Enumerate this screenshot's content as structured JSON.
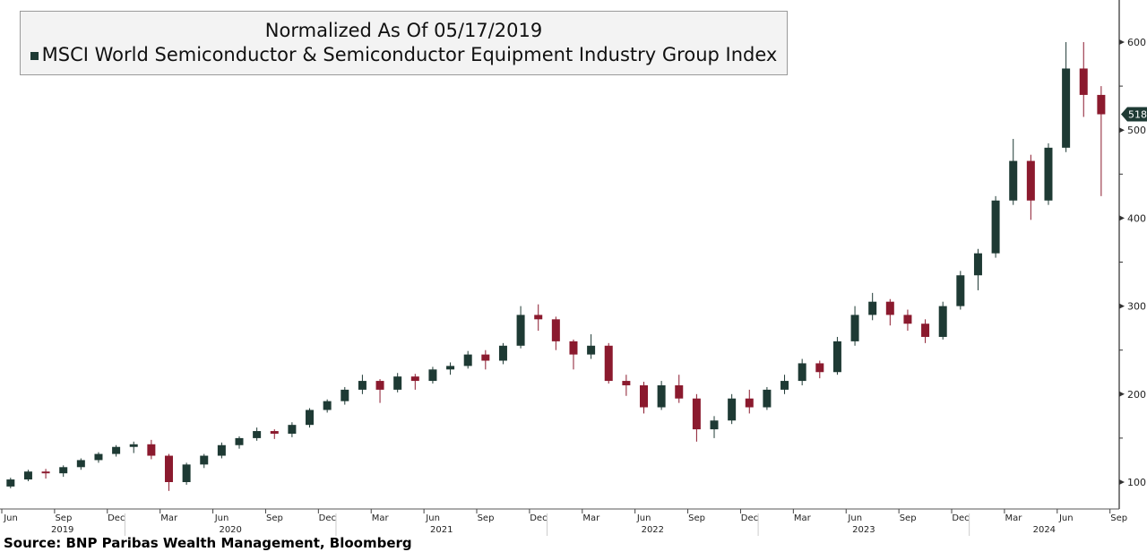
{
  "chart_data": {
    "type": "candlestick",
    "title": "Normalized As Of 05/17/2019",
    "series_name": "MSCI World Semiconductor & Semiconductor Equipment Industry Group Index",
    "last_value_label": "518.1",
    "ylim": [
      90,
      640
    ],
    "yticks": [
      100,
      200,
      300,
      400,
      500,
      600
    ],
    "xtick_labels": [
      "Jun",
      "Sep",
      "Dec",
      "Mar",
      "Jun",
      "Sep",
      "Dec",
      "Mar",
      "Jun",
      "Sep",
      "Dec",
      "Mar",
      "Jun",
      "Sep",
      "Dec",
      "Mar",
      "Jun",
      "Sep",
      "Dec",
      "Mar",
      "Jun",
      "Sep"
    ],
    "year_labels": [
      "2019",
      "2020",
      "2021",
      "2022",
      "2023",
      "2024"
    ],
    "grid": false,
    "colors": {
      "up": "#1e3a34",
      "down": "#8b1a2e",
      "axis": "#555555"
    },
    "periods": [
      "2019-05",
      "2019-06",
      "2019-07",
      "2019-08",
      "2019-09",
      "2019-10",
      "2019-11",
      "2019-12",
      "2020-01",
      "2020-02",
      "2020-03",
      "2020-04",
      "2020-05",
      "2020-06",
      "2020-07",
      "2020-08",
      "2020-09",
      "2020-10",
      "2020-11",
      "2020-12",
      "2021-01",
      "2021-02",
      "2021-03",
      "2021-04",
      "2021-05",
      "2021-06",
      "2021-07",
      "2021-08",
      "2021-09",
      "2021-10",
      "2021-11",
      "2021-12",
      "2022-01",
      "2022-02",
      "2022-03",
      "2022-04",
      "2022-05",
      "2022-06",
      "2022-07",
      "2022-08",
      "2022-09",
      "2022-10",
      "2022-11",
      "2022-12",
      "2023-01",
      "2023-02",
      "2023-03",
      "2023-04",
      "2023-05",
      "2023-06",
      "2023-07",
      "2023-08",
      "2023-09",
      "2023-10",
      "2023-11",
      "2023-12",
      "2024-01",
      "2024-02",
      "2024-03",
      "2024-04",
      "2024-05",
      "2024-06",
      "2024-07",
      "2024-08"
    ],
    "ohlc": [
      [
        100,
        101,
        92,
        95
      ],
      [
        95,
        105,
        93,
        103
      ],
      [
        103,
        114,
        101,
        112
      ],
      [
        112,
        115,
        104,
        110
      ],
      [
        110,
        119,
        106,
        117
      ],
      [
        117,
        127,
        114,
        125
      ],
      [
        125,
        134,
        122,
        132
      ],
      [
        132,
        142,
        129,
        140
      ],
      [
        140,
        146,
        133,
        143
      ],
      [
        143,
        148,
        126,
        130
      ],
      [
        130,
        132,
        90,
        100
      ],
      [
        100,
        122,
        97,
        120
      ],
      [
        120,
        132,
        116,
        130
      ],
      [
        130,
        145,
        127,
        142
      ],
      [
        142,
        152,
        138,
        150
      ],
      [
        150,
        162,
        147,
        158
      ],
      [
        158,
        160,
        149,
        155
      ],
      [
        155,
        168,
        151,
        165
      ],
      [
        165,
        184,
        162,
        182
      ],
      [
        182,
        194,
        179,
        192
      ],
      [
        192,
        208,
        188,
        205
      ],
      [
        205,
        222,
        200,
        215
      ],
      [
        215,
        217,
        190,
        205
      ],
      [
        205,
        224,
        202,
        220
      ],
      [
        220,
        223,
        205,
        215
      ],
      [
        215,
        231,
        212,
        228
      ],
      [
        228,
        236,
        222,
        232
      ],
      [
        232,
        249,
        229,
        245
      ],
      [
        245,
        250,
        228,
        238
      ],
      [
        238,
        258,
        234,
        255
      ],
      [
        255,
        300,
        252,
        290
      ],
      [
        290,
        302,
        272,
        285
      ],
      [
        285,
        288,
        250,
        260
      ],
      [
        260,
        262,
        228,
        245
      ],
      [
        245,
        268,
        240,
        255
      ],
      [
        255,
        258,
        212,
        215
      ],
      [
        215,
        222,
        198,
        210
      ],
      [
        210,
        214,
        178,
        185
      ],
      [
        185,
        215,
        182,
        210
      ],
      [
        210,
        222,
        190,
        195
      ],
      [
        195,
        200,
        146,
        160
      ],
      [
        160,
        175,
        150,
        170
      ],
      [
        170,
        200,
        166,
        195
      ],
      [
        195,
        205,
        178,
        185
      ],
      [
        185,
        208,
        182,
        205
      ],
      [
        205,
        222,
        200,
        215
      ],
      [
        215,
        240,
        210,
        235
      ],
      [
        235,
        238,
        218,
        225
      ],
      [
        225,
        265,
        222,
        260
      ],
      [
        260,
        300,
        255,
        290
      ],
      [
        290,
        315,
        284,
        305
      ],
      [
        305,
        308,
        278,
        290
      ],
      [
        290,
        296,
        272,
        280
      ],
      [
        280,
        285,
        258,
        265
      ],
      [
        265,
        305,
        262,
        300
      ],
      [
        300,
        340,
        296,
        335
      ],
      [
        335,
        365,
        318,
        360
      ],
      [
        360,
        425,
        355,
        420
      ],
      [
        420,
        490,
        415,
        465
      ],
      [
        465,
        472,
        398,
        420
      ],
      [
        420,
        485,
        415,
        480
      ],
      [
        480,
        600,
        475,
        570
      ],
      [
        570,
        600,
        515,
        540
      ],
      [
        540,
        550,
        425,
        518
      ]
    ]
  },
  "source": "Source: BNP Paribas Wealth Management, Bloomberg"
}
